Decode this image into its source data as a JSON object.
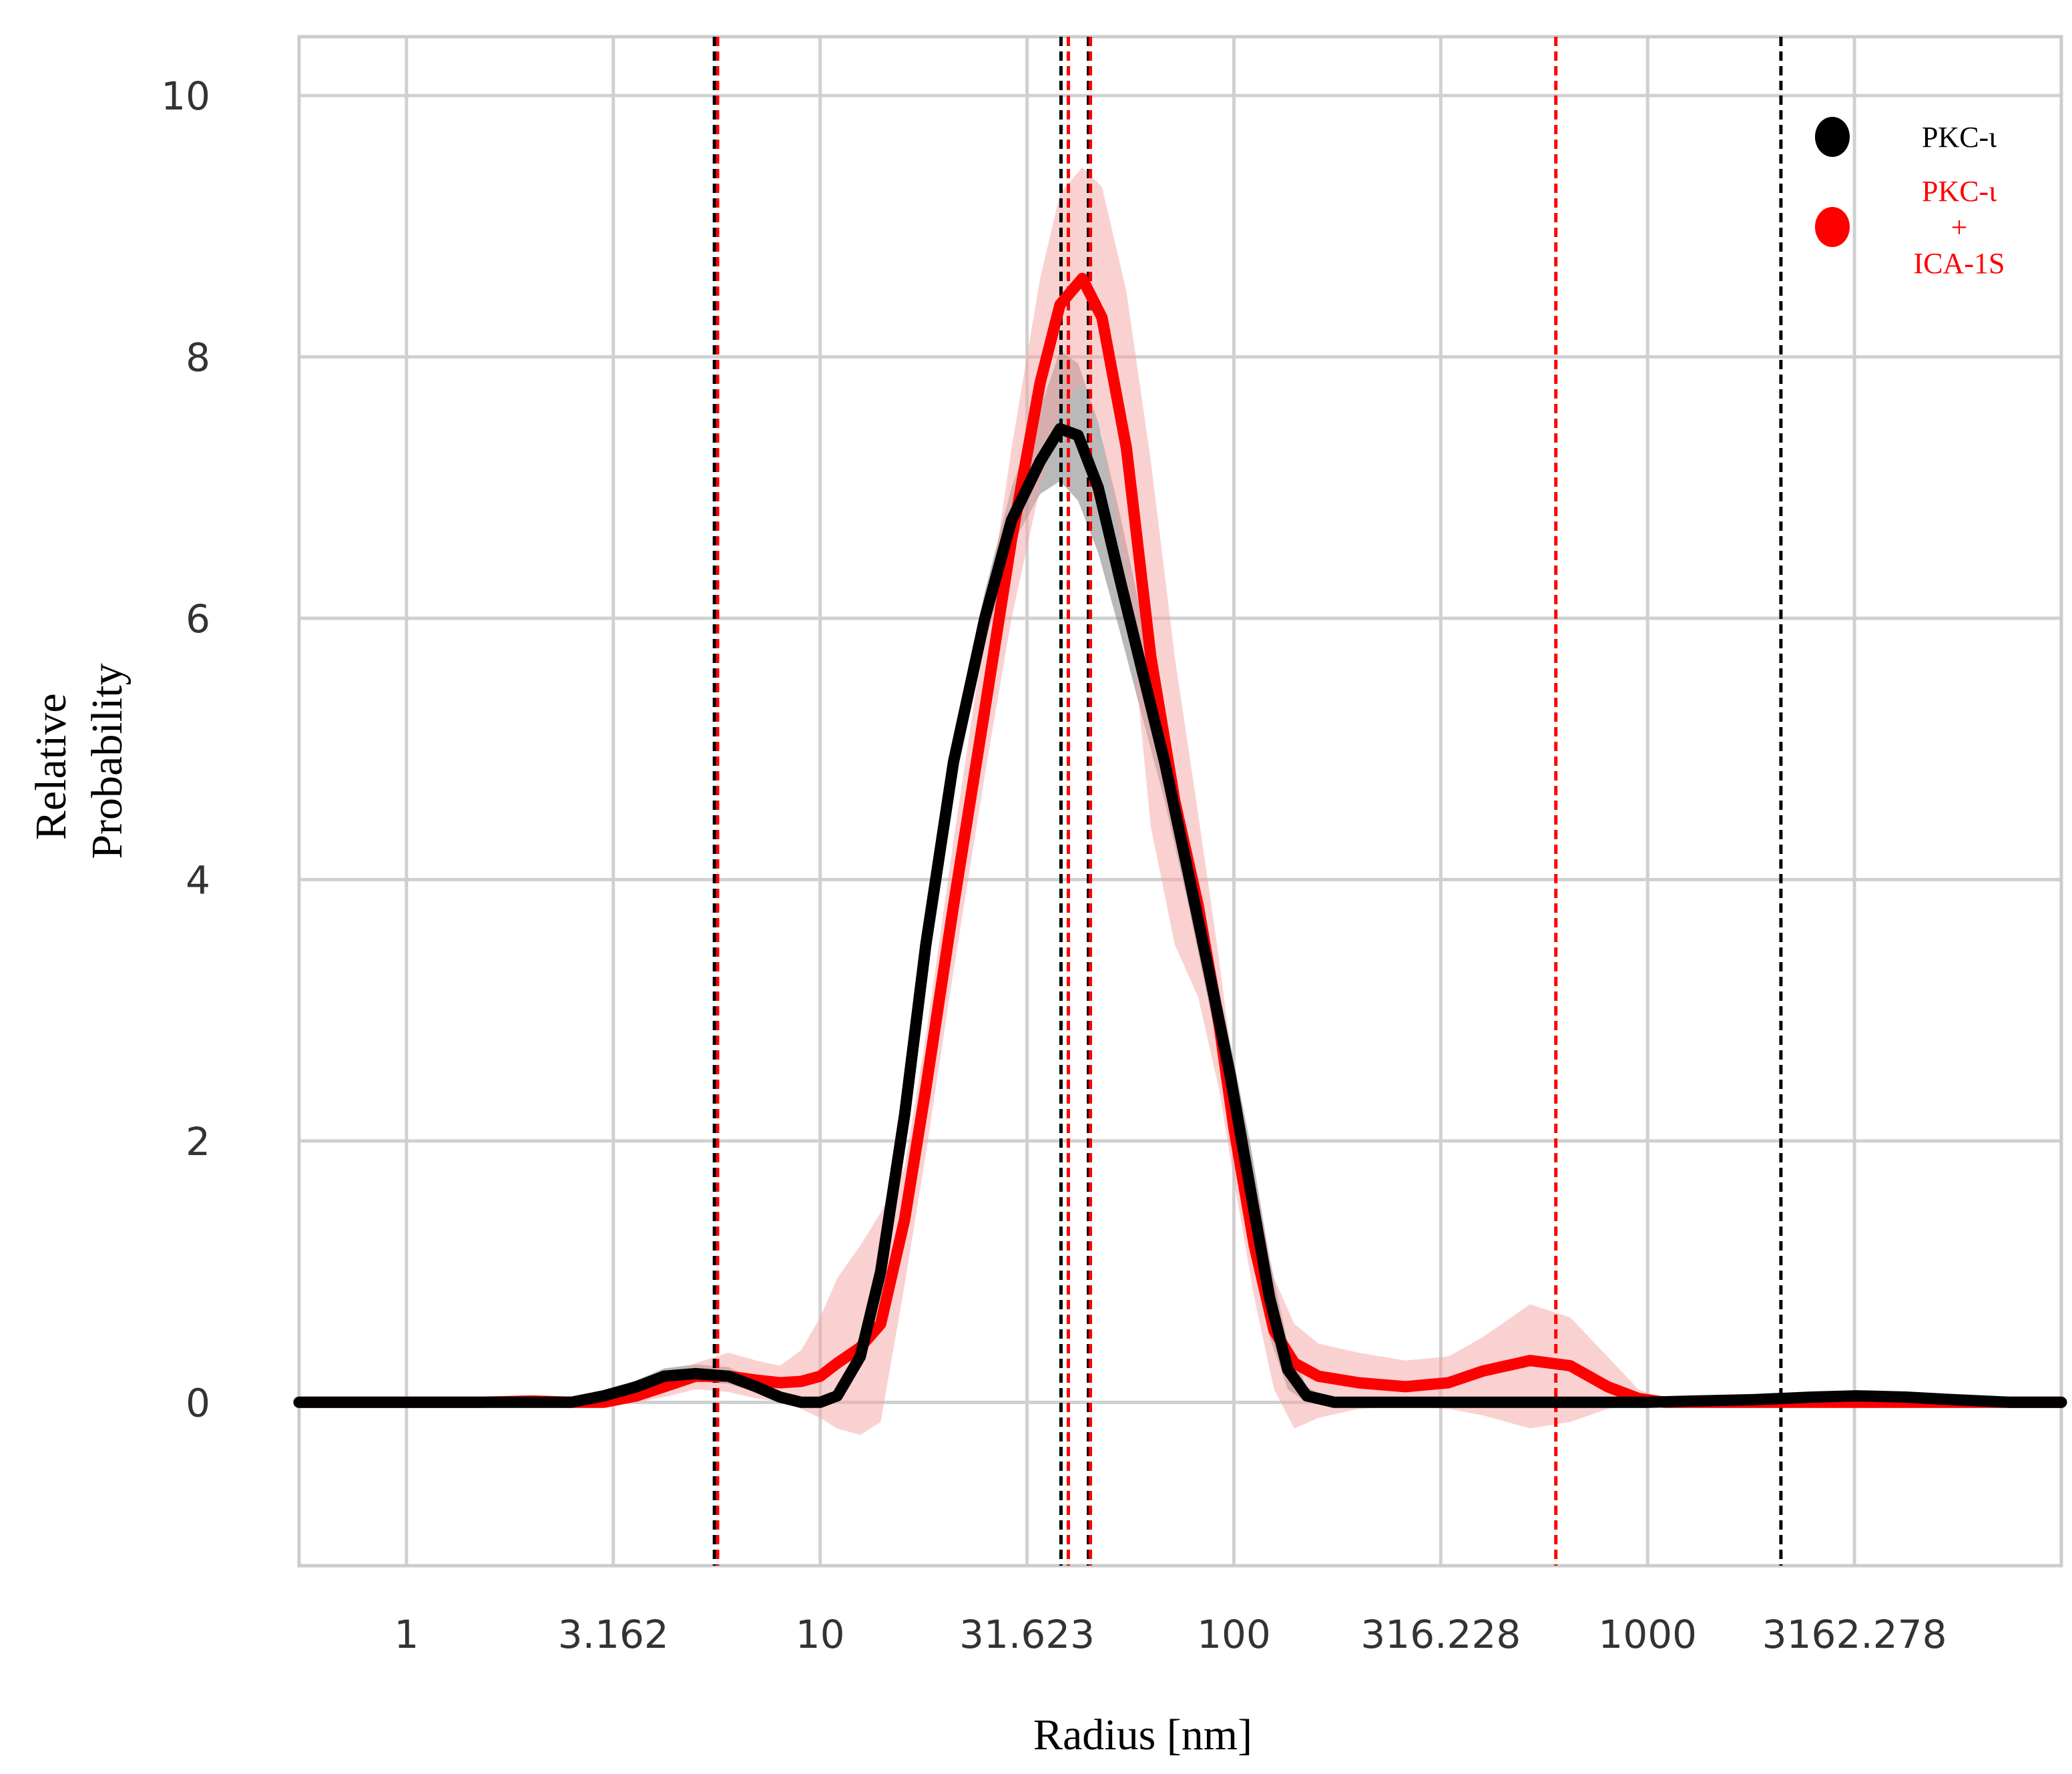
{
  "chart_data": {
    "type": "line",
    "xlabel": "Radius [nm]",
    "ylabel_lines": [
      "Relative",
      "Probability"
    ],
    "x_scale": "log",
    "xlim": [
      0.55,
      10000
    ],
    "ylim": [
      -1.25,
      10.45
    ],
    "grid": true,
    "x_ticks": [
      {
        "value": 1,
        "label": "1"
      },
      {
        "value": 3.162,
        "label": "3.162"
      },
      {
        "value": 10,
        "label": "10"
      },
      {
        "value": 31.623,
        "label": "31.623"
      },
      {
        "value": 100,
        "label": "100"
      },
      {
        "value": 316.228,
        "label": "316.228"
      },
      {
        "value": 1000,
        "label": "1000"
      },
      {
        "value": 3162.278,
        "label": "3162.278"
      }
    ],
    "y_ticks": [
      {
        "value": 0,
        "label": "0"
      },
      {
        "value": 2,
        "label": "2"
      },
      {
        "value": 4,
        "label": "4"
      },
      {
        "value": 6,
        "label": "6"
      },
      {
        "value": 8,
        "label": "8"
      },
      {
        "value": 10,
        "label": "10"
      }
    ],
    "legend": {
      "placement": "top-right",
      "entries": [
        {
          "lines": [
            "PKC-ι"
          ],
          "color": "#000000"
        },
        {
          "lines": [
            "PKC-ι",
            "+",
            "ICA-1S"
          ],
          "color": "#ff0000"
        }
      ]
    },
    "series": [
      {
        "color": "#000000",
        "band_color": "#808080",
        "points": [
          [
            0.55,
            0
          ],
          [
            1,
            0
          ],
          [
            1.5,
            0
          ],
          [
            2,
            0
          ],
          [
            2.5,
            0
          ],
          [
            3,
            0.05
          ],
          [
            3.6,
            0.12
          ],
          [
            4.2,
            0.2
          ],
          [
            5,
            0.22
          ],
          [
            6,
            0.2
          ],
          [
            7,
            0.12
          ],
          [
            8,
            0.04
          ],
          [
            9,
            0
          ],
          [
            10,
            0
          ],
          [
            11,
            0.05
          ],
          [
            12.5,
            0.35
          ],
          [
            14,
            1.0
          ],
          [
            16,
            2.2
          ],
          [
            18,
            3.5
          ],
          [
            21,
            4.9
          ],
          [
            25,
            6.0
          ],
          [
            29,
            6.75
          ],
          [
            34,
            7.2
          ],
          [
            38,
            7.45
          ],
          [
            42,
            7.4
          ],
          [
            47,
            7.0
          ],
          [
            53,
            6.3
          ],
          [
            60,
            5.6
          ],
          [
            68,
            4.9
          ],
          [
            77,
            4.1
          ],
          [
            87,
            3.3
          ],
          [
            98,
            2.5
          ],
          [
            110,
            1.6
          ],
          [
            122,
            0.8
          ],
          [
            135,
            0.25
          ],
          [
            150,
            0.05
          ],
          [
            175,
            0
          ],
          [
            250,
            0
          ],
          [
            500,
            0
          ],
          [
            800,
            0
          ],
          [
            1000,
            0
          ],
          [
            1300,
            0.01
          ],
          [
            1800,
            0.02
          ],
          [
            2500,
            0.04
          ],
          [
            3200,
            0.05
          ],
          [
            4200,
            0.04
          ],
          [
            5500,
            0.02
          ],
          [
            7500,
            0
          ],
          [
            10000,
            0
          ]
        ],
        "band_upper": [
          [
            0.55,
            0
          ],
          [
            1,
            0
          ],
          [
            2,
            0
          ],
          [
            3,
            0.08
          ],
          [
            3.6,
            0.17
          ],
          [
            4.2,
            0.26
          ],
          [
            5,
            0.29
          ],
          [
            6,
            0.27
          ],
          [
            7,
            0.17
          ],
          [
            8,
            0.08
          ],
          [
            9,
            0.03
          ],
          [
            10,
            0.03
          ],
          [
            11,
            0.1
          ],
          [
            12.5,
            0.42
          ],
          [
            14,
            1.1
          ],
          [
            16,
            2.35
          ],
          [
            18,
            3.7
          ],
          [
            21,
            5.1
          ],
          [
            25,
            6.2
          ],
          [
            29,
            7.0
          ],
          [
            34,
            7.6
          ],
          [
            38,
            8.05
          ],
          [
            42,
            7.95
          ],
          [
            47,
            7.5
          ],
          [
            53,
            6.8
          ],
          [
            60,
            6.0
          ],
          [
            68,
            5.2
          ],
          [
            77,
            4.35
          ],
          [
            87,
            3.55
          ],
          [
            98,
            2.75
          ],
          [
            110,
            1.95
          ],
          [
            122,
            1.1
          ],
          [
            135,
            0.45
          ],
          [
            150,
            0.12
          ],
          [
            175,
            0
          ],
          [
            10000,
            0
          ]
        ],
        "band_lower": [
          [
            0.55,
            0
          ],
          [
            1,
            0
          ],
          [
            2,
            0
          ],
          [
            3,
            0.02
          ],
          [
            3.6,
            0.08
          ],
          [
            4.2,
            0.14
          ],
          [
            5,
            0.16
          ],
          [
            6,
            0.14
          ],
          [
            7,
            0.08
          ],
          [
            8,
            0.01
          ],
          [
            9,
            0
          ],
          [
            10,
            0
          ],
          [
            11,
            0.02
          ],
          [
            12.5,
            0.28
          ],
          [
            14,
            0.9
          ],
          [
            16,
            2.05
          ],
          [
            18,
            3.3
          ],
          [
            21,
            4.7
          ],
          [
            25,
            5.8
          ],
          [
            29,
            6.55
          ],
          [
            34,
            6.95
          ],
          [
            38,
            7.05
          ],
          [
            42,
            6.9
          ],
          [
            47,
            6.5
          ],
          [
            53,
            5.9
          ],
          [
            60,
            5.25
          ],
          [
            68,
            4.6
          ],
          [
            77,
            3.85
          ],
          [
            87,
            3.05
          ],
          [
            98,
            2.25
          ],
          [
            110,
            1.3
          ],
          [
            122,
            0.5
          ],
          [
            135,
            0.1
          ],
          [
            150,
            0
          ],
          [
            175,
            0
          ],
          [
            10000,
            0
          ]
        ]
      },
      {
        "color": "#ff0000",
        "band_color": "#f5a3a3",
        "points": [
          [
            0.55,
            0
          ],
          [
            1,
            0
          ],
          [
            1.5,
            0
          ],
          [
            2,
            0.01
          ],
          [
            2.5,
            0
          ],
          [
            3,
            0
          ],
          [
            3.6,
            0.05
          ],
          [
            4.2,
            0.12
          ],
          [
            5,
            0.2
          ],
          [
            6,
            0.2
          ],
          [
            7,
            0.17
          ],
          [
            8,
            0.15
          ],
          [
            9,
            0.16
          ],
          [
            10,
            0.2
          ],
          [
            11,
            0.3
          ],
          [
            12.5,
            0.42
          ],
          [
            14,
            0.6
          ],
          [
            16,
            1.4
          ],
          [
            18,
            2.4
          ],
          [
            21,
            3.8
          ],
          [
            25,
            5.3
          ],
          [
            29,
            6.6
          ],
          [
            34,
            7.8
          ],
          [
            38,
            8.4
          ],
          [
            43,
            8.6
          ],
          [
            48,
            8.3
          ],
          [
            55,
            7.3
          ],
          [
            63,
            5.7
          ],
          [
            72,
            4.6
          ],
          [
            82,
            3.8
          ],
          [
            92,
            2.9
          ],
          [
            100,
            2.1
          ],
          [
            112,
            1.2
          ],
          [
            125,
            0.55
          ],
          [
            140,
            0.3
          ],
          [
            160,
            0.2
          ],
          [
            200,
            0.15
          ],
          [
            260,
            0.12
          ],
          [
            330,
            0.15
          ],
          [
            400,
            0.24
          ],
          [
            520,
            0.32
          ],
          [
            650,
            0.28
          ],
          [
            800,
            0.12
          ],
          [
            950,
            0.03
          ],
          [
            1100,
            0
          ],
          [
            1500,
            0
          ],
          [
            3000,
            0
          ],
          [
            10000,
            0
          ]
        ],
        "band_upper": [
          [
            0.55,
            0
          ],
          [
            1,
            0.01
          ],
          [
            2,
            0.03
          ],
          [
            3,
            0.02
          ],
          [
            3.6,
            0.1
          ],
          [
            4.2,
            0.2
          ],
          [
            5,
            0.3
          ],
          [
            6,
            0.38
          ],
          [
            7,
            0.32
          ],
          [
            8,
            0.28
          ],
          [
            9,
            0.4
          ],
          [
            10,
            0.65
          ],
          [
            11,
            0.95
          ],
          [
            12.5,
            1.2
          ],
          [
            14,
            1.45
          ],
          [
            16,
            1.8
          ],
          [
            18,
            2.8
          ],
          [
            21,
            4.3
          ],
          [
            25,
            5.9
          ],
          [
            29,
            7.3
          ],
          [
            34,
            8.6
          ],
          [
            38,
            9.25
          ],
          [
            43,
            9.45
          ],
          [
            48,
            9.3
          ],
          [
            55,
            8.5
          ],
          [
            63,
            7.2
          ],
          [
            72,
            5.7
          ],
          [
            82,
            4.5
          ],
          [
            92,
            3.4
          ],
          [
            100,
            2.5
          ],
          [
            112,
            1.7
          ],
          [
            125,
            0.95
          ],
          [
            140,
            0.6
          ],
          [
            160,
            0.45
          ],
          [
            200,
            0.38
          ],
          [
            260,
            0.32
          ],
          [
            330,
            0.35
          ],
          [
            400,
            0.5
          ],
          [
            520,
            0.75
          ],
          [
            650,
            0.65
          ],
          [
            800,
            0.35
          ],
          [
            950,
            0.1
          ],
          [
            1100,
            0.02
          ],
          [
            10000,
            0
          ]
        ],
        "band_lower": [
          [
            0.55,
            0
          ],
          [
            1,
            0
          ],
          [
            2,
            0
          ],
          [
            3,
            0
          ],
          [
            3.6,
            0
          ],
          [
            4.2,
            0.04
          ],
          [
            5,
            0.1
          ],
          [
            6,
            0.08
          ],
          [
            7,
            0.03
          ],
          [
            8,
            0
          ],
          [
            9,
            -0.05
          ],
          [
            10,
            -0.12
          ],
          [
            11,
            -0.2
          ],
          [
            12.5,
            -0.25
          ],
          [
            14,
            -0.15
          ],
          [
            16,
            0.9
          ],
          [
            18,
            1.9
          ],
          [
            21,
            3.3
          ],
          [
            25,
            4.8
          ],
          [
            29,
            6.0
          ],
          [
            34,
            7.0
          ],
          [
            38,
            7.6
          ],
          [
            43,
            7.8
          ],
          [
            48,
            7.4
          ],
          [
            55,
            6.3
          ],
          [
            63,
            4.4
          ],
          [
            72,
            3.5
          ],
          [
            82,
            3.1
          ],
          [
            92,
            2.4
          ],
          [
            100,
            1.7
          ],
          [
            112,
            0.8
          ],
          [
            125,
            0.1
          ],
          [
            140,
            -0.2
          ],
          [
            160,
            -0.12
          ],
          [
            200,
            -0.05
          ],
          [
            260,
            -0.03
          ],
          [
            330,
            -0.05
          ],
          [
            400,
            -0.1
          ],
          [
            520,
            -0.2
          ],
          [
            650,
            -0.15
          ],
          [
            800,
            -0.05
          ],
          [
            950,
            0
          ],
          [
            1100,
            0
          ],
          [
            10000,
            0
          ]
        ]
      }
    ],
    "reference_lines": [
      {
        "x": 5.55,
        "color": "#000000"
      },
      {
        "x": 5.65,
        "color": "#ff0000"
      },
      {
        "x": 38.2,
        "color": "#000000"
      },
      {
        "x": 39.8,
        "color": "#ff0000"
      },
      {
        "x": 44.5,
        "color": "#000000"
      },
      {
        "x": 45.0,
        "color": "#ff0000"
      },
      {
        "x": 600,
        "color": "#ff0000"
      },
      {
        "x": 2100,
        "color": "#000000"
      }
    ]
  }
}
